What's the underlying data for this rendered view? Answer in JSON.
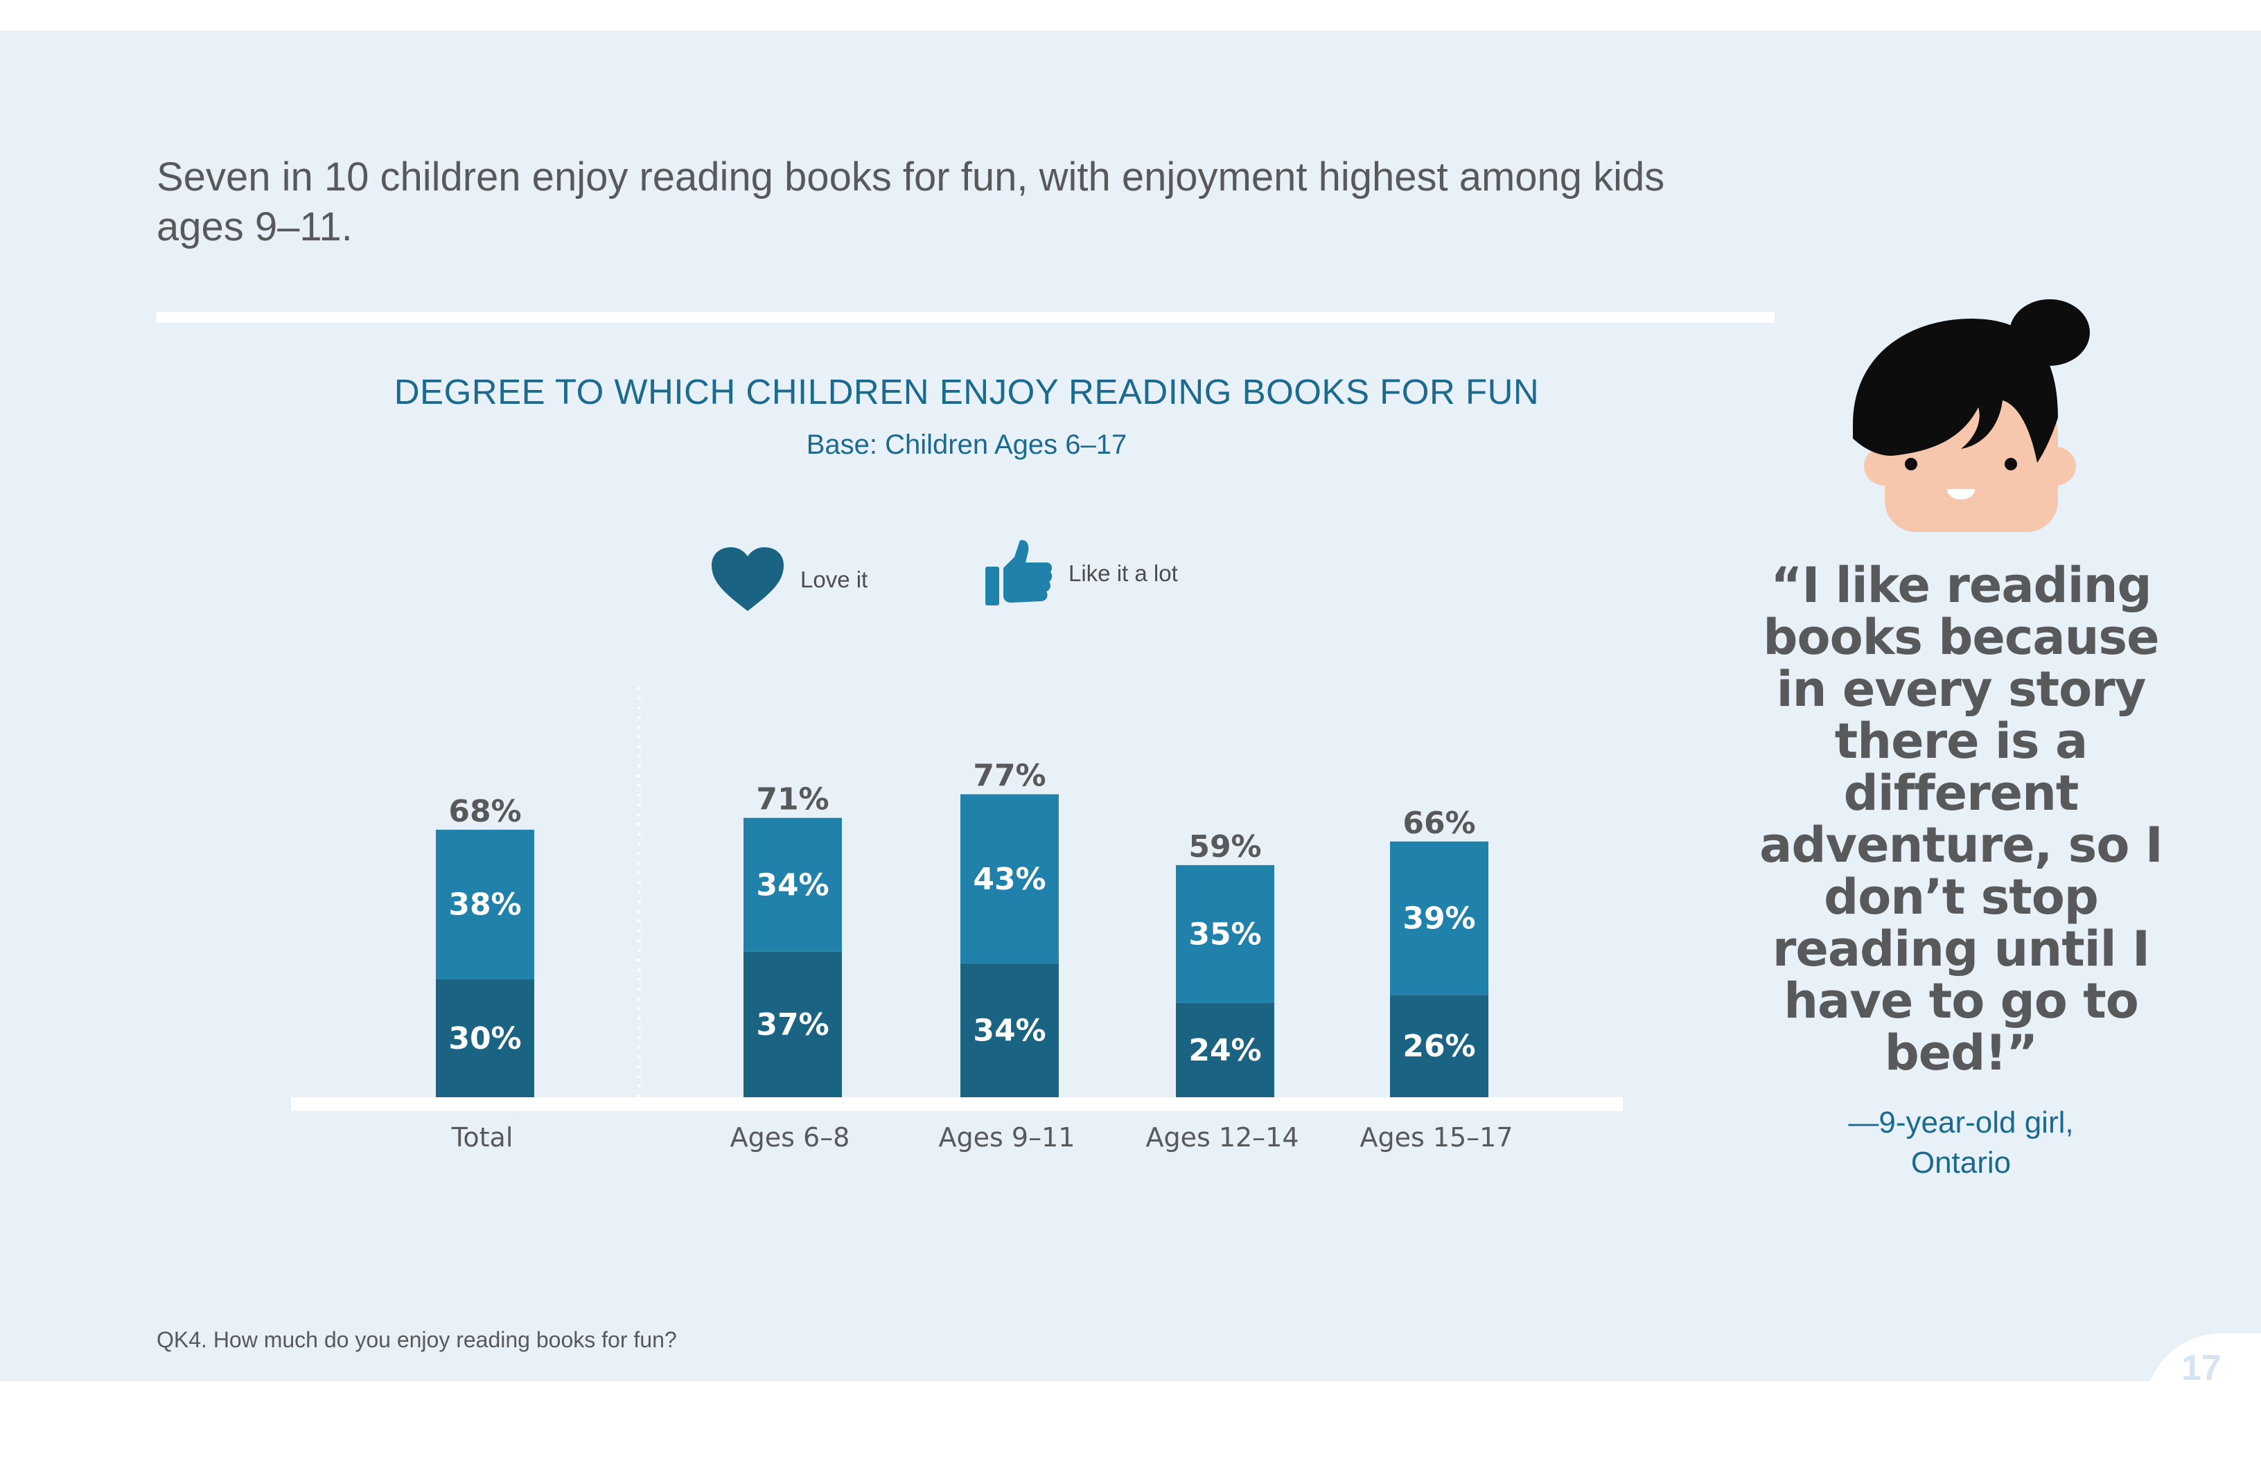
{
  "headline": "Seven in 10 children enjoy reading books for fun, with enjoyment highest among kids ages 9–11.",
  "legend": [
    {
      "label": "Love it",
      "icon": "heart-icon",
      "color": "#1b6382"
    },
    {
      "label": "Like it a lot",
      "icon": "thumbs-up-icon",
      "color": "#2081aa"
    }
  ],
  "chart_data": {
    "type": "bar",
    "stacked": true,
    "title": "DEGREE TO WHICH CHILDREN ENJOY READING BOOKS FOR FUN",
    "subtitle": "Base: Children Ages 6–17",
    "categories": [
      "Total",
      "Ages 6–8",
      "Ages 9–11",
      "Ages 12–14",
      "Ages 15–17"
    ],
    "series": [
      {
        "name": "Love it",
        "values": [
          30,
          37,
          34,
          24,
          26
        ],
        "labels": [
          "30%",
          "37%",
          "34%",
          "24%",
          "26%"
        ],
        "color": "#1b6382"
      },
      {
        "name": "Like it a lot",
        "values": [
          38,
          34,
          43,
          35,
          39
        ],
        "labels": [
          "38%",
          "34%",
          "43%",
          "35%",
          "39%"
        ],
        "color": "#2081aa"
      }
    ],
    "totals": [
      68,
      71,
      77,
      59,
      66
    ],
    "total_labels": [
      "68%",
      "71%",
      "77%",
      "59%",
      "66%"
    ],
    "xlabel": "",
    "ylabel": "",
    "grid": false,
    "legend_position": "top"
  },
  "quote": "“I like reading books because in every story there is a different adventure, so I don’t stop reading until I have to go to bed!”",
  "attribution_line1": "—9-year-old girl,",
  "attribution_line2": "Ontario",
  "footnote": "QK4. How much do you enjoy reading books for fun?",
  "page_number": "17"
}
